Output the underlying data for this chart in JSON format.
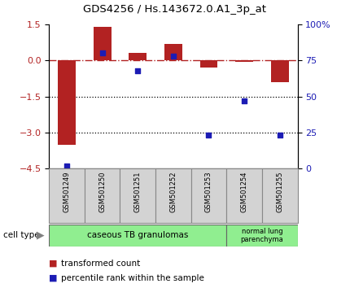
{
  "title": "GDS4256 / Hs.143672.0.A1_3p_at",
  "samples": [
    "GSM501249",
    "GSM501250",
    "GSM501251",
    "GSM501252",
    "GSM501253",
    "GSM501254",
    "GSM501255"
  ],
  "red_values": [
    -3.5,
    1.4,
    0.3,
    0.7,
    -0.3,
    -0.05,
    -0.9
  ],
  "blue_values_pct": [
    2,
    80,
    68,
    78,
    23,
    47,
    23
  ],
  "ylim_left": [
    -4.5,
    1.5
  ],
  "yticks_left": [
    -4.5,
    -3.0,
    -1.5,
    0,
    1.5
  ],
  "yticks_right": [
    0,
    25,
    50,
    75,
    100
  ],
  "hlines_dotted": [
    -1.5,
    -3.0
  ],
  "red_color": "#B22222",
  "blue_color": "#1C1CB4",
  "bar_width": 0.5,
  "legend_red": "transformed count",
  "legend_blue": "percentile rank within the sample",
  "cell_type_label": "cell type",
  "group1_label": "caseous TB granulomas",
  "group1_count": 5,
  "group2_label": "normal lung\nparenchyma",
  "group2_count": 2,
  "group_color": "#90EE90",
  "sample_box_color": "#D3D3D3",
  "title_fontsize": 9.5,
  "tick_fontsize": 8,
  "legend_fontsize": 7.5,
  "sample_fontsize": 6.0
}
